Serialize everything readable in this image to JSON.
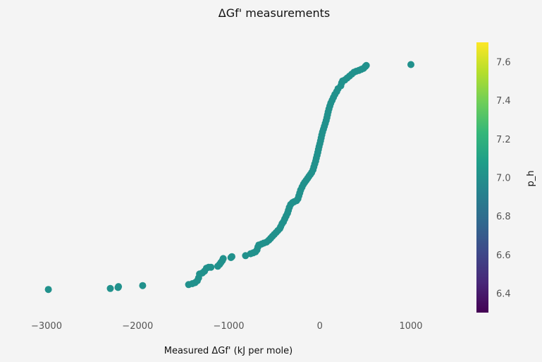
{
  "chart_data": {
    "type": "scatter",
    "title": "ΔGf' measurements",
    "xlabel": "Measured ΔGf' (kJ per mole)",
    "ylabel": "",
    "xlim": [
      -3000,
      1000
    ],
    "ylim": [
      6.3,
      7.7
    ],
    "x_ticks": [
      "−3000",
      "−2000",
      "−1000",
      "0",
      "1000"
    ],
    "x_tick_values": [
      -3000,
      -2000,
      -1000,
      0,
      1000
    ],
    "grid": false,
    "point_color": "#21918c",
    "points": [
      [
        -2980,
        6.42
      ],
      [
        -2300,
        6.425
      ],
      [
        -2215,
        6.43
      ],
      [
        -2210,
        6.435
      ],
      [
        -1945,
        6.44
      ],
      [
        -1440,
        6.445
      ],
      [
        -1400,
        6.45
      ],
      [
        -1370,
        6.455
      ],
      [
        -1345,
        6.465
      ],
      [
        -1330,
        6.48
      ],
      [
        -1320,
        6.5
      ],
      [
        -1290,
        6.505
      ],
      [
        -1265,
        6.515
      ],
      [
        -1245,
        6.53
      ],
      [
        -1220,
        6.535
      ],
      [
        -1195,
        6.535
      ],
      [
        -1120,
        6.54
      ],
      [
        -1100,
        6.55
      ],
      [
        -1085,
        6.56
      ],
      [
        -1070,
        6.57
      ],
      [
        -1060,
        6.58
      ],
      [
        -975,
        6.585
      ],
      [
        -965,
        6.59
      ],
      [
        -815,
        6.595
      ],
      [
        -760,
        6.605
      ],
      [
        -730,
        6.61
      ],
      [
        -705,
        6.615
      ],
      [
        -690,
        6.625
      ],
      [
        -680,
        6.64
      ],
      [
        -670,
        6.65
      ],
      [
        -640,
        6.655
      ],
      [
        -615,
        6.66
      ],
      [
        -585,
        6.665
      ],
      [
        -560,
        6.675
      ],
      [
        -540,
        6.685
      ],
      [
        -520,
        6.695
      ],
      [
        -500,
        6.705
      ],
      [
        -480,
        6.715
      ],
      [
        -460,
        6.725
      ],
      [
        -440,
        6.735
      ],
      [
        -430,
        6.745
      ],
      [
        -415,
        6.76
      ],
      [
        -400,
        6.77
      ],
      [
        -385,
        6.785
      ],
      [
        -370,
        6.8
      ],
      [
        -355,
        6.815
      ],
      [
        -345,
        6.83
      ],
      [
        -335,
        6.845
      ],
      [
        -320,
        6.86
      ],
      [
        -300,
        6.87
      ],
      [
        -280,
        6.875
      ],
      [
        -255,
        6.88
      ],
      [
        -240,
        6.89
      ],
      [
        -230,
        6.905
      ],
      [
        -220,
        6.92
      ],
      [
        -210,
        6.935
      ],
      [
        -195,
        6.95
      ],
      [
        -180,
        6.965
      ],
      [
        -165,
        6.975
      ],
      [
        -150,
        6.985
      ],
      [
        -135,
        6.995
      ],
      [
        -120,
        7.005
      ],
      [
        -105,
        7.015
      ],
      [
        -90,
        7.025
      ],
      [
        -75,
        7.04
      ],
      [
        -65,
        7.055
      ],
      [
        -55,
        7.07
      ],
      [
        -45,
        7.085
      ],
      [
        -38,
        7.1
      ],
      [
        -30,
        7.115
      ],
      [
        -22,
        7.13
      ],
      [
        -15,
        7.145
      ],
      [
        -8,
        7.16
      ],
      [
        0,
        7.175
      ],
      [
        8,
        7.19
      ],
      [
        15,
        7.205
      ],
      [
        22,
        7.22
      ],
      [
        30,
        7.235
      ],
      [
        40,
        7.25
      ],
      [
        50,
        7.265
      ],
      [
        60,
        7.28
      ],
      [
        70,
        7.295
      ],
      [
        78,
        7.31
      ],
      [
        85,
        7.325
      ],
      [
        92,
        7.34
      ],
      [
        100,
        7.355
      ],
      [
        110,
        7.37
      ],
      [
        120,
        7.385
      ],
      [
        135,
        7.4
      ],
      [
        150,
        7.415
      ],
      [
        165,
        7.43
      ],
      [
        185,
        7.445
      ],
      [
        200,
        7.46
      ],
      [
        230,
        7.475
      ],
      [
        240,
        7.49
      ],
      [
        250,
        7.5
      ],
      [
        275,
        7.505
      ],
      [
        300,
        7.515
      ],
      [
        325,
        7.525
      ],
      [
        350,
        7.535
      ],
      [
        375,
        7.545
      ],
      [
        400,
        7.55
      ],
      [
        430,
        7.555
      ],
      [
        455,
        7.56
      ],
      [
        480,
        7.565
      ],
      [
        500,
        7.575
      ],
      [
        510,
        7.58
      ],
      [
        1000,
        7.585
      ]
    ],
    "colorbar": {
      "label": "p_h",
      "range": [
        6.3,
        7.7
      ],
      "ticks": [
        "6.4",
        "6.6",
        "6.8",
        "7.0",
        "7.2",
        "7.4",
        "7.6"
      ],
      "tick_values": [
        6.4,
        6.6,
        6.8,
        7.0,
        7.2,
        7.4,
        7.6
      ],
      "colormap": "viridis",
      "stops": [
        "#440154",
        "#482878",
        "#3e4989",
        "#31688e",
        "#26828e",
        "#1f9e89",
        "#35b779",
        "#6ece58",
        "#b5de2b",
        "#fde725"
      ]
    }
  }
}
